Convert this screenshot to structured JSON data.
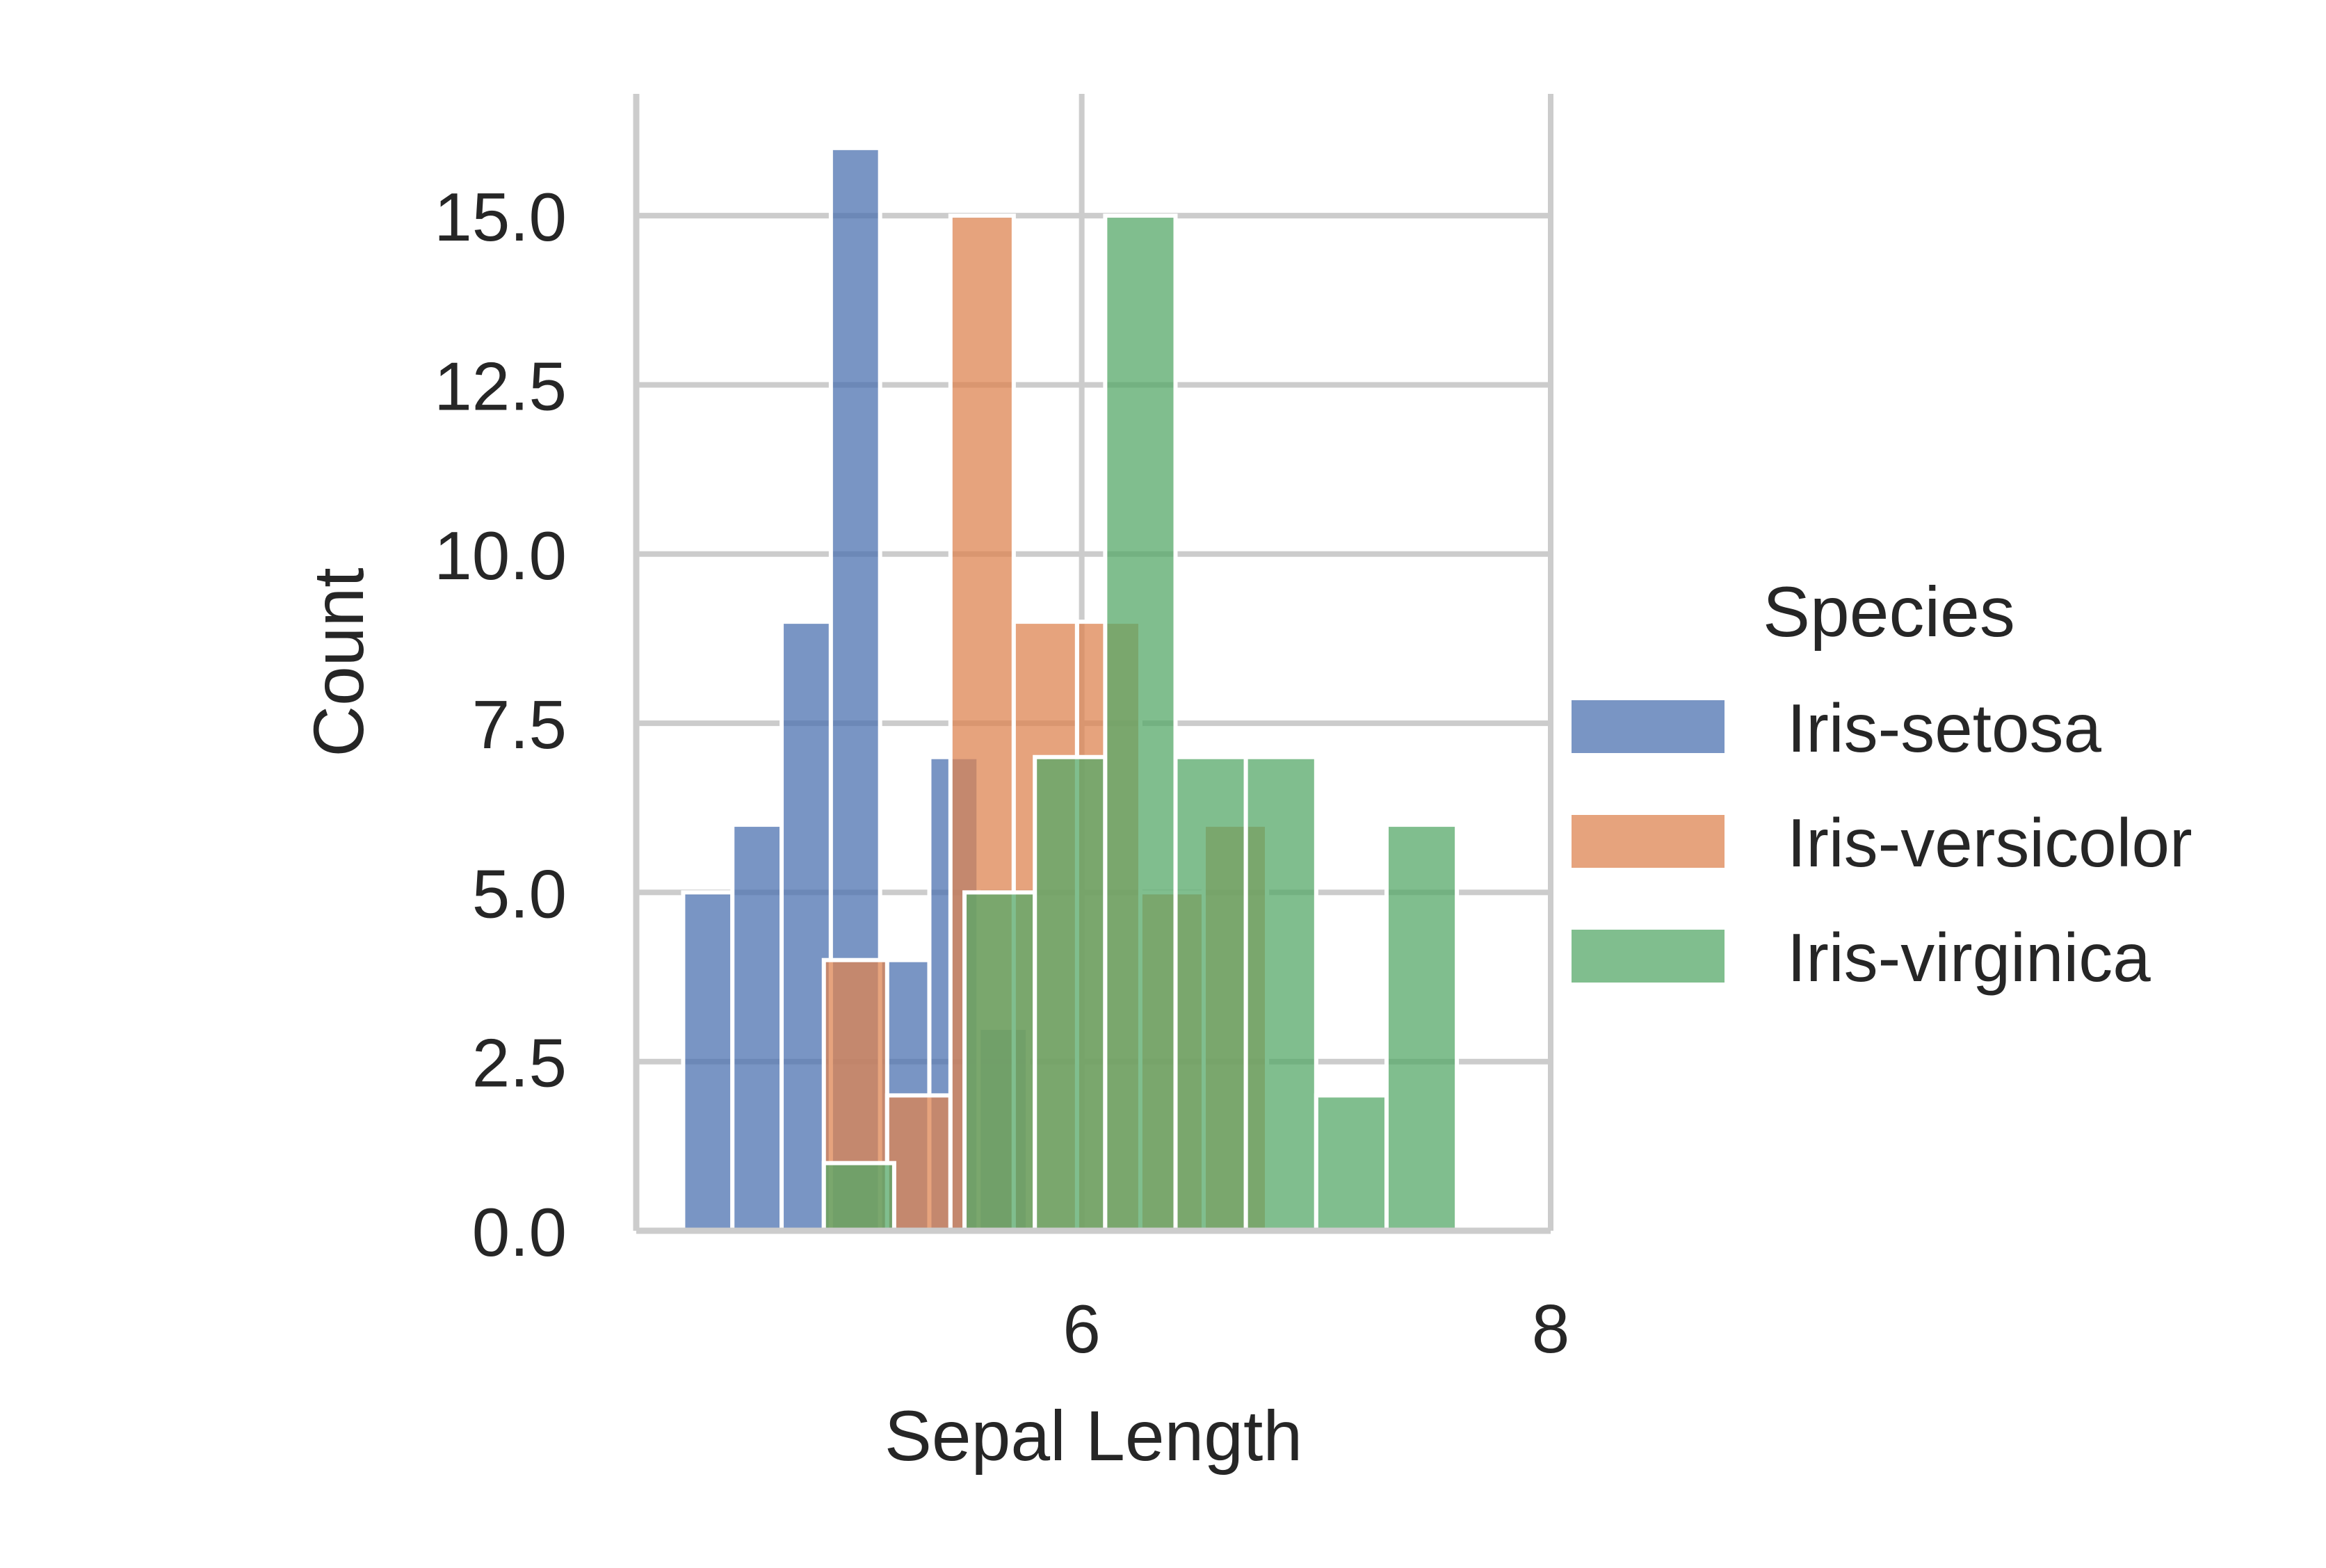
{
  "chart_data": {
    "type": "histogram",
    "xlabel": "Sepal Length",
    "ylabel": "Count",
    "xlim": [
      4.1,
      8.0
    ],
    "ylim": [
      0,
      16.8
    ],
    "xticks": [
      {
        "value": 6,
        "label": "6"
      },
      {
        "value": 8,
        "label": "8"
      }
    ],
    "yticks": [
      {
        "value": 0,
        "label": "0.0"
      },
      {
        "value": 2.5,
        "label": "2.5"
      },
      {
        "value": 5,
        "label": "5.0"
      },
      {
        "value": 7.5,
        "label": "7.5"
      },
      {
        "value": 10,
        "label": "10.0"
      },
      {
        "value": 12.5,
        "label": "12.5"
      },
      {
        "value": 15,
        "label": "15.0"
      }
    ],
    "grid": true,
    "legend": {
      "title": "Species",
      "placement": "right"
    },
    "series": [
      {
        "name": "Iris-setosa",
        "color": "#4c72b0",
        "bins": [
          {
            "x0": 4.3,
            "x1": 4.51,
            "count": 5
          },
          {
            "x0": 4.51,
            "x1": 4.72,
            "count": 6
          },
          {
            "x0": 4.72,
            "x1": 4.93,
            "count": 9
          },
          {
            "x0": 4.93,
            "x1": 5.14,
            "count": 16
          },
          {
            "x0": 5.14,
            "x1": 5.35,
            "count": 4
          },
          {
            "x0": 5.35,
            "x1": 5.56,
            "count": 7
          },
          {
            "x0": 5.56,
            "x1": 5.77,
            "count": 3
          }
        ]
      },
      {
        "name": "Iris-versicolor",
        "color": "#dd8452",
        "bins": [
          {
            "x0": 4.9,
            "x1": 5.17,
            "count": 4
          },
          {
            "x0": 5.17,
            "x1": 5.44,
            "count": 2
          },
          {
            "x0": 5.44,
            "x1": 5.71,
            "count": 15
          },
          {
            "x0": 5.71,
            "x1": 5.98,
            "count": 9
          },
          {
            "x0": 5.98,
            "x1": 6.25,
            "count": 9
          },
          {
            "x0": 6.25,
            "x1": 6.52,
            "count": 5
          },
          {
            "x0": 6.52,
            "x1": 6.79,
            "count": 6
          }
        ]
      },
      {
        "name": "Iris-virginica",
        "color": "#55a868",
        "bins": [
          {
            "x0": 4.9,
            "x1": 5.2,
            "count": 1
          },
          {
            "x0": 5.5,
            "x1": 5.8,
            "count": 5
          },
          {
            "x0": 5.8,
            "x1": 6.1,
            "count": 7
          },
          {
            "x0": 6.1,
            "x1": 6.4,
            "count": 15
          },
          {
            "x0": 6.4,
            "x1": 6.7,
            "count": 7
          },
          {
            "x0": 6.7,
            "x1": 7.0,
            "count": 7
          },
          {
            "x0": 7.0,
            "x1": 7.3,
            "count": 2
          },
          {
            "x0": 7.3,
            "x1": 7.6,
            "count": 6
          }
        ]
      }
    ]
  }
}
